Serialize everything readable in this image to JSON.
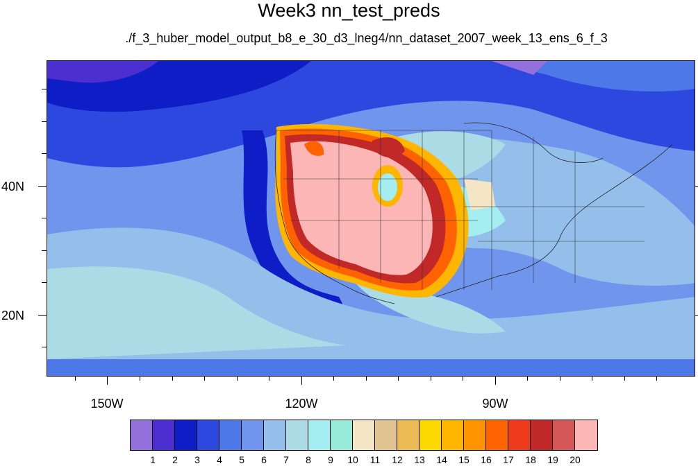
{
  "title": "Week3 nn_test_preds",
  "subtitle": "./f_3_huber_model_output_b8_e_30_d3_lneg4/nn_dataset_2007_week_13_ens_6_f_3",
  "map": {
    "y_axis_labels": [
      "40N",
      "20N"
    ],
    "x_axis_labels": [
      "150W",
      "120W",
      "90W"
    ]
  },
  "colorbar": {
    "labels": [
      "1",
      "2",
      "3",
      "4",
      "5",
      "6",
      "7",
      "8",
      "9",
      "10",
      "11",
      "12",
      "13",
      "14",
      "15",
      "16",
      "17",
      "18",
      "19",
      "20"
    ],
    "colors": [
      "#9370db",
      "#4b2fd0",
      "#0f1dc7",
      "#2d48de",
      "#4d78e8",
      "#6f96ec",
      "#94bfea",
      "#abdce6",
      "#a4eef2",
      "#99ebd9",
      "#f4e6c4",
      "#e0c391",
      "#ebba55",
      "#fbd800",
      "#ffb600",
      "#ff9400",
      "#ff6200",
      "#ed3a1a",
      "#c12828",
      "#d65757",
      "#fdb6b6"
    ]
  }
}
